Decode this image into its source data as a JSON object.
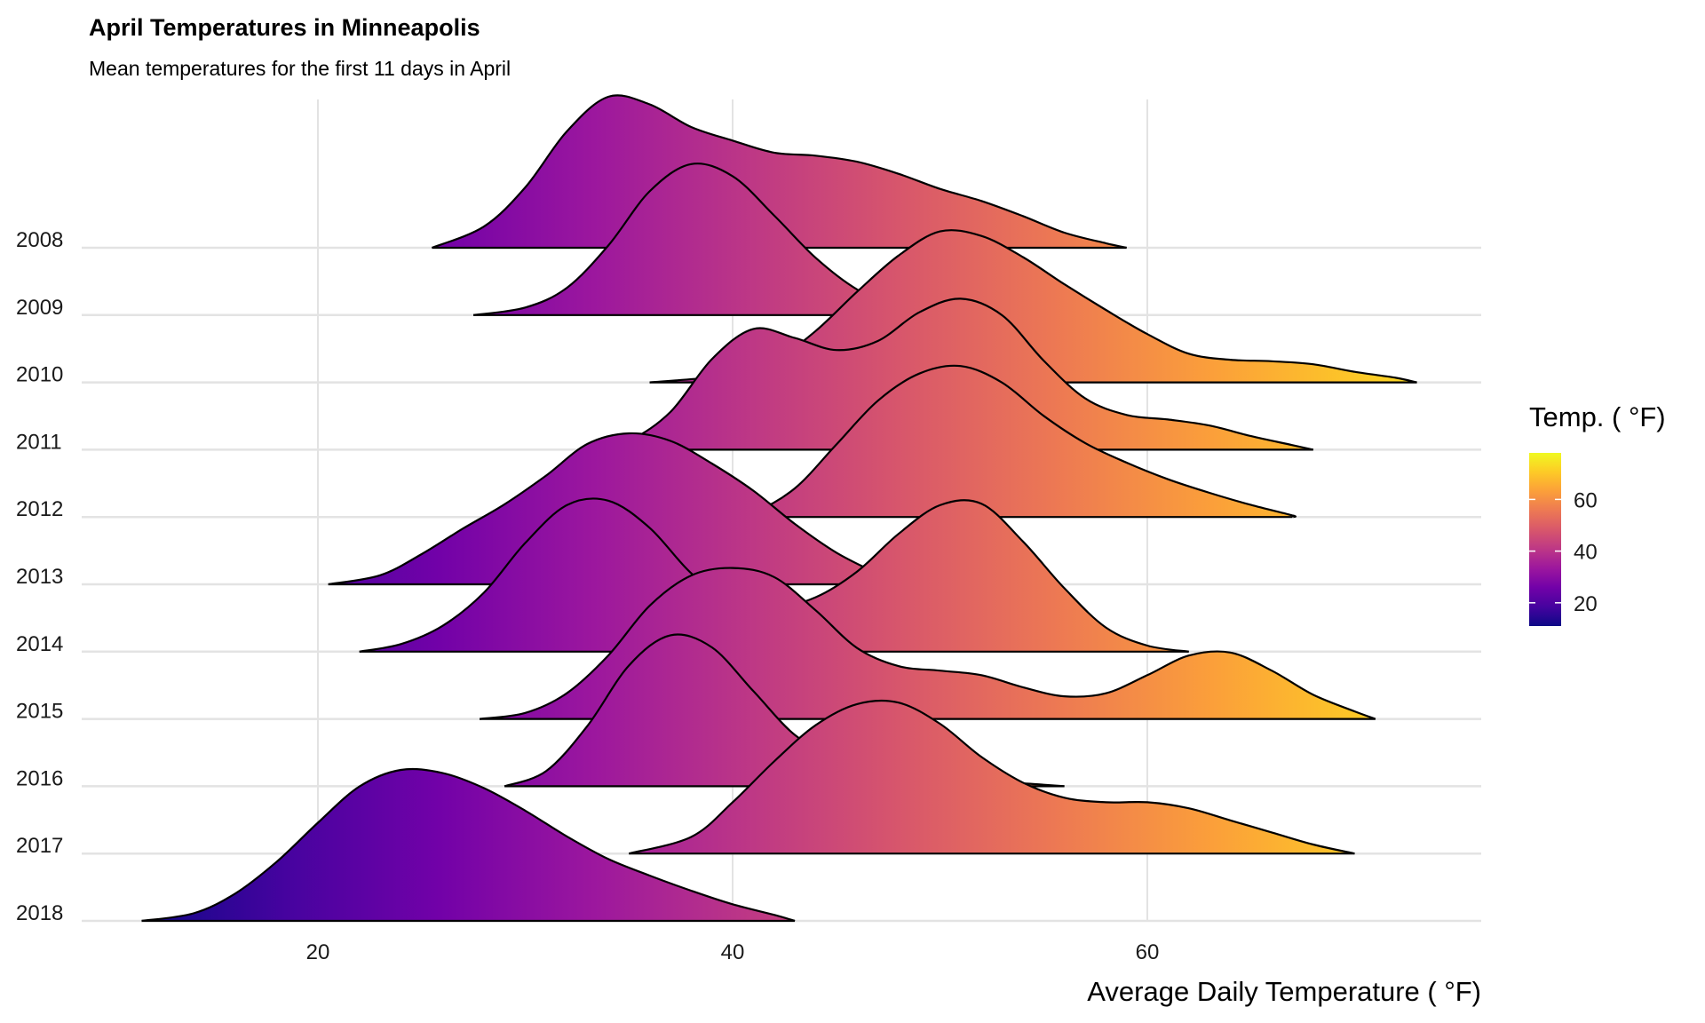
{
  "chart_data": {
    "type": "ridgeline",
    "title": "April Temperatures in Minneapolis",
    "subtitle": "Mean temperatures for the first 11 days in April",
    "xlabel": "Average Daily Temperature ( °F)",
    "ylabel": "",
    "xlim": [
      8.5,
      76
    ],
    "x_ticks": [
      20,
      40,
      60
    ],
    "categories": [
      "2008",
      "2009",
      "2010",
      "2011",
      "2012",
      "2013",
      "2014",
      "2015",
      "2016",
      "2017",
      "2018"
    ],
    "series": [
      {
        "name": "2008",
        "points": [
          [
            25.5,
            0.0
          ],
          [
            28,
            0.14
          ],
          [
            30,
            0.4
          ],
          [
            32,
            0.77
          ],
          [
            34,
            1.0
          ],
          [
            36,
            0.95
          ],
          [
            38,
            0.8
          ],
          [
            40,
            0.71
          ],
          [
            42,
            0.63
          ],
          [
            44,
            0.61
          ],
          [
            46,
            0.57
          ],
          [
            48,
            0.49
          ],
          [
            50,
            0.39
          ],
          [
            52,
            0.31
          ],
          [
            54,
            0.21
          ],
          [
            56,
            0.1
          ],
          [
            58,
            0.03
          ],
          [
            59,
            0.0
          ]
        ]
      },
      {
        "name": "2009",
        "points": [
          [
            27.5,
            0.0
          ],
          [
            30,
            0.05
          ],
          [
            32,
            0.18
          ],
          [
            34,
            0.46
          ],
          [
            36,
            0.82
          ],
          [
            38,
            1.0
          ],
          [
            40,
            0.92
          ],
          [
            42,
            0.66
          ],
          [
            44,
            0.38
          ],
          [
            46,
            0.17
          ],
          [
            48,
            0.05
          ],
          [
            50,
            0.01
          ],
          [
            50.5,
            0.0
          ]
        ]
      },
      {
        "name": "2010",
        "points": [
          [
            36,
            0.0
          ],
          [
            40,
            0.05
          ],
          [
            42,
            0.14
          ],
          [
            44,
            0.34
          ],
          [
            46,
            0.6
          ],
          [
            48,
            0.84
          ],
          [
            50,
            1.0
          ],
          [
            52,
            0.97
          ],
          [
            54,
            0.83
          ],
          [
            56,
            0.65
          ],
          [
            58,
            0.48
          ],
          [
            60,
            0.32
          ],
          [
            62,
            0.19
          ],
          [
            64,
            0.15
          ],
          [
            66,
            0.14
          ],
          [
            68,
            0.12
          ],
          [
            70,
            0.07
          ],
          [
            72,
            0.03
          ],
          [
            73,
            0.0
          ]
        ]
      },
      {
        "name": "2011",
        "points": [
          [
            33,
            0.0
          ],
          [
            35,
            0.06
          ],
          [
            37,
            0.25
          ],
          [
            39,
            0.6
          ],
          [
            41,
            0.8
          ],
          [
            43,
            0.74
          ],
          [
            45,
            0.66
          ],
          [
            47,
            0.72
          ],
          [
            49,
            0.91
          ],
          [
            51,
            1.0
          ],
          [
            53,
            0.89
          ],
          [
            55,
            0.59
          ],
          [
            57,
            0.34
          ],
          [
            59,
            0.23
          ],
          [
            61,
            0.2
          ],
          [
            63,
            0.16
          ],
          [
            65,
            0.09
          ],
          [
            67,
            0.03
          ],
          [
            68,
            0.0
          ]
        ]
      },
      {
        "name": "2012",
        "points": [
          [
            39.5,
            0.0
          ],
          [
            41,
            0.03
          ],
          [
            43,
            0.19
          ],
          [
            45,
            0.48
          ],
          [
            47,
            0.77
          ],
          [
            49,
            0.95
          ],
          [
            51,
            1.0
          ],
          [
            53,
            0.89
          ],
          [
            55,
            0.67
          ],
          [
            57,
            0.49
          ],
          [
            59,
            0.36
          ],
          [
            61,
            0.25
          ],
          [
            63,
            0.16
          ],
          [
            65,
            0.08
          ],
          [
            67,
            0.01
          ],
          [
            67,
            0.0
          ]
        ]
      },
      {
        "name": "2013",
        "points": [
          [
            20.5,
            0.0
          ],
          [
            23,
            0.06
          ],
          [
            25,
            0.2
          ],
          [
            27,
            0.37
          ],
          [
            29,
            0.53
          ],
          [
            31,
            0.72
          ],
          [
            33,
            0.93
          ],
          [
            35,
            1.0
          ],
          [
            37,
            0.95
          ],
          [
            39,
            0.8
          ],
          [
            41,
            0.62
          ],
          [
            43,
            0.4
          ],
          [
            45,
            0.21
          ],
          [
            47,
            0.07
          ],
          [
            48,
            0.01
          ],
          [
            48.5,
            0.0
          ]
        ]
      },
      {
        "name": "2014",
        "points": [
          [
            22,
            0.0
          ],
          [
            24,
            0.05
          ],
          [
            26,
            0.17
          ],
          [
            28,
            0.39
          ],
          [
            30,
            0.72
          ],
          [
            32,
            0.97
          ],
          [
            34,
            1.0
          ],
          [
            36,
            0.82
          ],
          [
            38,
            0.52
          ],
          [
            40,
            0.33
          ],
          [
            42,
            0.29
          ],
          [
            44,
            0.36
          ],
          [
            46,
            0.53
          ],
          [
            48,
            0.78
          ],
          [
            50,
            0.97
          ],
          [
            52,
            0.98
          ],
          [
            54,
            0.73
          ],
          [
            56,
            0.42
          ],
          [
            58,
            0.16
          ],
          [
            60,
            0.04
          ],
          [
            62,
            0.0
          ]
        ]
      },
      {
        "name": "2015",
        "points": [
          [
            27.8,
            0.0
          ],
          [
            30,
            0.04
          ],
          [
            32,
            0.17
          ],
          [
            34,
            0.42
          ],
          [
            36,
            0.75
          ],
          [
            38,
            0.95
          ],
          [
            40,
            1.0
          ],
          [
            42,
            0.94
          ],
          [
            44,
            0.72
          ],
          [
            46,
            0.47
          ],
          [
            48,
            0.35
          ],
          [
            50,
            0.32
          ],
          [
            52,
            0.29
          ],
          [
            54,
            0.21
          ],
          [
            56,
            0.15
          ],
          [
            58,
            0.17
          ],
          [
            60,
            0.29
          ],
          [
            62,
            0.42
          ],
          [
            64,
            0.44
          ],
          [
            66,
            0.32
          ],
          [
            68,
            0.16
          ],
          [
            70,
            0.05
          ],
          [
            71,
            0.0
          ]
        ]
      },
      {
        "name": "2016",
        "points": [
          [
            29,
            0.0
          ],
          [
            31,
            0.1
          ],
          [
            33,
            0.4
          ],
          [
            35,
            0.8
          ],
          [
            37,
            1.0
          ],
          [
            39,
            0.92
          ],
          [
            41,
            0.63
          ],
          [
            43,
            0.34
          ],
          [
            45,
            0.19
          ],
          [
            47,
            0.13
          ],
          [
            49,
            0.1
          ],
          [
            51,
            0.06
          ],
          [
            53,
            0.03
          ],
          [
            55,
            0.01
          ],
          [
            56,
            0.0
          ]
        ]
      },
      {
        "name": "2017",
        "points": [
          [
            35,
            0.0
          ],
          [
            38,
            0.11
          ],
          [
            40,
            0.34
          ],
          [
            42,
            0.61
          ],
          [
            44,
            0.85
          ],
          [
            46,
            0.99
          ],
          [
            48,
            1.0
          ],
          [
            50,
            0.86
          ],
          [
            52,
            0.64
          ],
          [
            54,
            0.47
          ],
          [
            56,
            0.37
          ],
          [
            58,
            0.34
          ],
          [
            60,
            0.34
          ],
          [
            62,
            0.3
          ],
          [
            64,
            0.22
          ],
          [
            66,
            0.14
          ],
          [
            68,
            0.06
          ],
          [
            70,
            0.0
          ]
        ]
      },
      {
        "name": "2018",
        "points": [
          [
            11.5,
            0.0
          ],
          [
            14,
            0.05
          ],
          [
            16,
            0.18
          ],
          [
            18,
            0.39
          ],
          [
            20,
            0.65
          ],
          [
            22,
            0.89
          ],
          [
            24,
            1.0
          ],
          [
            26,
            0.98
          ],
          [
            28,
            0.88
          ],
          [
            30,
            0.73
          ],
          [
            32,
            0.56
          ],
          [
            34,
            0.41
          ],
          [
            36,
            0.3
          ],
          [
            38,
            0.2
          ],
          [
            40,
            0.11
          ],
          [
            42,
            0.04
          ],
          [
            43,
            0.0
          ]
        ]
      }
    ],
    "color_scale": {
      "name": "Temp. ( °F)",
      "colormap": "plasma",
      "range": [
        11,
        78
      ],
      "ticks": [
        20,
        40,
        60
      ],
      "stops": [
        "#0d0887",
        "#46039f",
        "#7201a8",
        "#9c179e",
        "#bd3786",
        "#d8576b",
        "#ed7953",
        "#fb9f3a",
        "#fdca26",
        "#f0f921"
      ]
    },
    "grid": true,
    "legend_position": "right"
  }
}
